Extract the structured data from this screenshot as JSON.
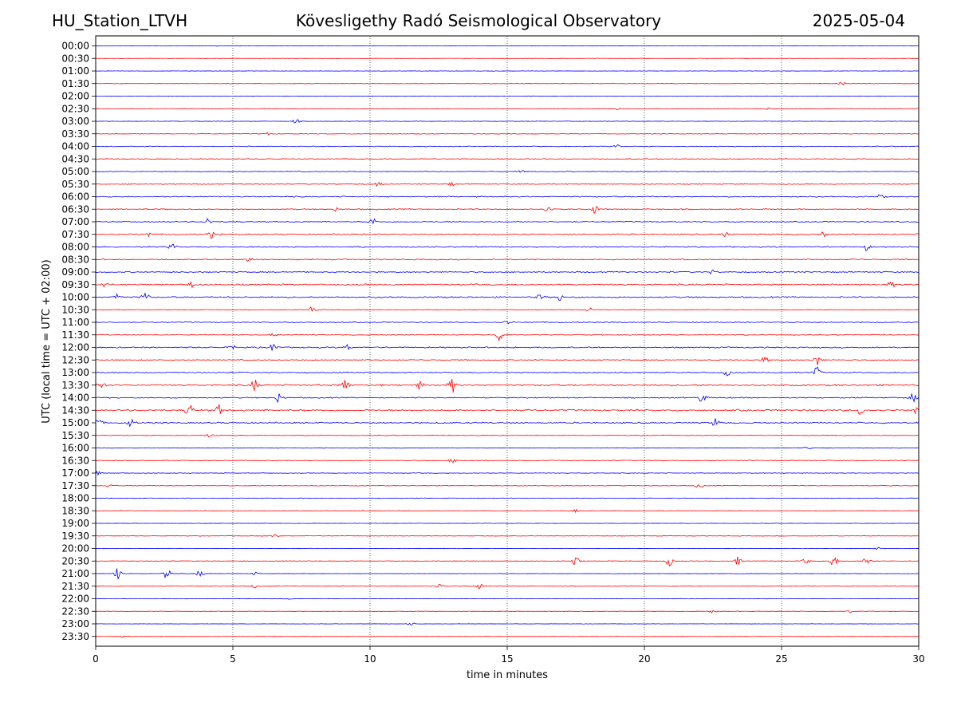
{
  "header": {
    "station": "HU_Station_LTVH",
    "title": "Kövesligethy Radó Seismological Observatory",
    "date": "2025-05-04"
  },
  "chart_data": {
    "type": "line",
    "title": "Kövesligethy Radó Seismological Observatory",
    "xlabel": "time in minutes",
    "ylabel": "UTC (local time = UTC + 02:00)",
    "xlim": [
      0,
      30
    ],
    "x_ticks": [
      "0",
      "5",
      "10",
      "15",
      "20",
      "25",
      "30"
    ],
    "grid": "vertical dotted lines at 5-minute intervals",
    "trace_colors": [
      "#0000ff",
      "#ff0000"
    ],
    "rows": [
      {
        "label": "00:00",
        "activity": 0.1,
        "bursts": [
          [
            4.3,
            0.1
          ]
        ]
      },
      {
        "label": "00:30",
        "activity": 0.12,
        "bursts": []
      },
      {
        "label": "01:00",
        "activity": 0.12,
        "bursts": []
      },
      {
        "label": "01:30",
        "activity": 0.15,
        "bursts": [
          [
            27.2,
            0.25
          ]
        ]
      },
      {
        "label": "02:00",
        "activity": 0.1,
        "bursts": []
      },
      {
        "label": "02:30",
        "activity": 0.15,
        "bursts": [
          [
            19.0,
            0.15
          ],
          [
            24.5,
            0.15
          ]
        ]
      },
      {
        "label": "03:00",
        "activity": 0.15,
        "bursts": [
          [
            7.3,
            0.3
          ]
        ]
      },
      {
        "label": "03:30",
        "activity": 0.2,
        "bursts": [
          [
            6.3,
            0.2
          ]
        ]
      },
      {
        "label": "04:00",
        "activity": 0.25,
        "bursts": [
          [
            19.0,
            0.2
          ]
        ]
      },
      {
        "label": "04:30",
        "activity": 0.25,
        "bursts": []
      },
      {
        "label": "05:00",
        "activity": 0.25,
        "bursts": [
          [
            15.5,
            0.15
          ]
        ]
      },
      {
        "label": "05:30",
        "activity": 0.3,
        "bursts": [
          [
            10.3,
            0.3
          ],
          [
            13.0,
            0.25
          ]
        ]
      },
      {
        "label": "06:00",
        "activity": 0.35,
        "bursts": [
          [
            28.6,
            0.3
          ]
        ]
      },
      {
        "label": "06:30",
        "activity": 0.35,
        "bursts": [
          [
            16.5,
            0.5
          ],
          [
            18.2,
            0.6
          ],
          [
            8.8,
            0.25
          ]
        ]
      },
      {
        "label": "07:00",
        "activity": 0.3,
        "bursts": [
          [
            4.1,
            0.5
          ],
          [
            10.1,
            0.55
          ]
        ]
      },
      {
        "label": "07:30",
        "activity": 0.4,
        "bursts": [
          [
            4.2,
            0.5
          ],
          [
            1.9,
            0.4
          ],
          [
            23.0,
            0.4
          ],
          [
            26.5,
            0.4
          ]
        ]
      },
      {
        "label": "08:00",
        "activity": 0.35,
        "bursts": [
          [
            2.8,
            0.4
          ],
          [
            28.1,
            0.5
          ]
        ]
      },
      {
        "label": "08:30",
        "activity": 0.35,
        "bursts": [
          [
            5.6,
            0.3
          ]
        ]
      },
      {
        "label": "09:00",
        "activity": 0.4,
        "bursts": [
          [
            22.5,
            0.3
          ]
        ]
      },
      {
        "label": "09:30",
        "activity": 0.45,
        "bursts": [
          [
            0.3,
            0.5
          ],
          [
            3.5,
            0.4
          ],
          [
            29.0,
            0.4
          ]
        ]
      },
      {
        "label": "10:00",
        "activity": 0.45,
        "bursts": [
          [
            1.8,
            0.75
          ],
          [
            0.8,
            0.45
          ],
          [
            16.9,
            0.5
          ],
          [
            16.2,
            0.4
          ]
        ]
      },
      {
        "label": "10:30",
        "activity": 0.2,
        "bursts": [
          [
            7.9,
            0.55
          ],
          [
            18.0,
            0.3
          ]
        ]
      },
      {
        "label": "11:00",
        "activity": 0.3,
        "bursts": [
          [
            15.0,
            0.25
          ]
        ]
      },
      {
        "label": "11:30",
        "activity": 0.25,
        "bursts": [
          [
            14.7,
            0.8
          ],
          [
            6.5,
            0.3
          ]
        ]
      },
      {
        "label": "12:00",
        "activity": 0.4,
        "bursts": [
          [
            6.5,
            0.65
          ],
          [
            5.0,
            0.4
          ],
          [
            9.2,
            0.45
          ]
        ]
      },
      {
        "label": "12:30",
        "activity": 0.35,
        "bursts": [
          [
            26.3,
            0.8
          ],
          [
            24.4,
            0.4
          ]
        ]
      },
      {
        "label": "13:00",
        "activity": 0.35,
        "bursts": [
          [
            26.3,
            0.9
          ],
          [
            23.0,
            0.4
          ]
        ]
      },
      {
        "label": "13:30",
        "activity": 0.55,
        "bursts": [
          [
            13.0,
            1.0
          ],
          [
            9.1,
            0.9
          ],
          [
            5.8,
            0.8
          ],
          [
            11.8,
            0.5
          ],
          [
            0.2,
            0.6
          ]
        ]
      },
      {
        "label": "14:00",
        "activity": 0.35,
        "bursts": [
          [
            6.7,
            0.7
          ],
          [
            22.1,
            0.7
          ],
          [
            29.8,
            0.6
          ]
        ]
      },
      {
        "label": "14:30",
        "activity": 0.55,
        "bursts": [
          [
            3.4,
            1.0
          ],
          [
            4.5,
            0.7
          ],
          [
            27.9,
            0.8
          ],
          [
            29.9,
            0.6
          ]
        ]
      },
      {
        "label": "15:00",
        "activity": 0.45,
        "bursts": [
          [
            1.3,
            0.6
          ],
          [
            22.6,
            0.6
          ],
          [
            0.1,
            0.5
          ]
        ]
      },
      {
        "label": "15:30",
        "activity": 0.25,
        "bursts": [
          [
            4.2,
            0.35
          ]
        ]
      },
      {
        "label": "16:00",
        "activity": 0.2,
        "bursts": [
          [
            26.0,
            0.45
          ]
        ]
      },
      {
        "label": "16:30",
        "activity": 0.25,
        "bursts": [
          [
            13.0,
            0.25
          ]
        ]
      },
      {
        "label": "17:00",
        "activity": 0.2,
        "bursts": [
          [
            0.1,
            0.3
          ]
        ]
      },
      {
        "label": "17:30",
        "activity": 0.2,
        "bursts": [
          [
            22.0,
            0.4
          ],
          [
            0.5,
            0.3
          ]
        ]
      },
      {
        "label": "18:00",
        "activity": 0.2,
        "bursts": []
      },
      {
        "label": "18:30",
        "activity": 0.15,
        "bursts": [
          [
            17.5,
            0.2
          ]
        ]
      },
      {
        "label": "19:00",
        "activity": 0.12,
        "bursts": []
      },
      {
        "label": "19:30",
        "activity": 0.15,
        "bursts": [
          [
            6.5,
            0.2
          ]
        ]
      },
      {
        "label": "20:00",
        "activity": 0.1,
        "bursts": [
          [
            28.5,
            0.2
          ]
        ]
      },
      {
        "label": "20:30",
        "activity": 0.15,
        "bursts": [
          [
            17.5,
            0.6
          ],
          [
            20.9,
            0.7
          ],
          [
            23.4,
            0.6
          ],
          [
            26.9,
            0.9
          ],
          [
            28.1,
            0.7
          ],
          [
            25.9,
            0.4
          ]
        ]
      },
      {
        "label": "21:00",
        "activity": 0.1,
        "bursts": [
          [
            0.8,
            0.8
          ],
          [
            2.6,
            0.95
          ],
          [
            3.8,
            0.5
          ],
          [
            5.8,
            0.25
          ]
        ]
      },
      {
        "label": "21:30",
        "activity": 0.15,
        "bursts": [
          [
            14.0,
            0.4
          ],
          [
            12.5,
            0.35
          ],
          [
            5.8,
            0.25
          ]
        ]
      },
      {
        "label": "22:00",
        "activity": 0.12,
        "bursts": [
          [
            7.0,
            0.2
          ]
        ]
      },
      {
        "label": "22:30",
        "activity": 0.12,
        "bursts": [
          [
            22.5,
            0.25
          ],
          [
            27.5,
            0.2
          ]
        ]
      },
      {
        "label": "23:00",
        "activity": 0.1,
        "bursts": [
          [
            11.5,
            0.2
          ]
        ]
      },
      {
        "label": "23:30",
        "activity": 0.08,
        "bursts": [
          [
            1.0,
            0.15
          ]
        ]
      }
    ]
  }
}
